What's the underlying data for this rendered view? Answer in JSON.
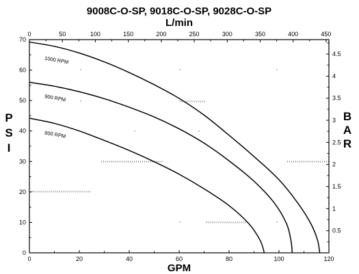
{
  "chart_data": {
    "type": "line",
    "title": "9008C-O-SP,  9018C-O-SP,  9028C-O-SP",
    "xlabel": "GPM",
    "ylabel": [
      "P",
      "S",
      "I"
    ],
    "x2label": "L/min",
    "y2label": [
      "B",
      "A",
      "R"
    ],
    "xlim": [
      0,
      120
    ],
    "ylim": [
      0,
      70
    ],
    "x_ticks": [
      "0",
      "20",
      "40",
      "60",
      "80",
      "100",
      "120"
    ],
    "y_ticks": [
      "0",
      "10",
      "20",
      "30",
      "40",
      "50",
      "60",
      "70"
    ],
    "x2lim": [
      0,
      454.25
    ],
    "x2_ticks": [
      "0",
      "50",
      "100",
      "150",
      "200",
      "250",
      "300",
      "350",
      "400",
      "450"
    ],
    "y2lim": [
      0,
      4.826
    ],
    "y2_ticks": [
      "0.5",
      "1",
      "1.5",
      "2",
      "2.5",
      "3",
      "3.5",
      "4",
      "4.5"
    ],
    "grid": false,
    "series": [
      {
        "name": "1000 RPM",
        "points": [
          [
            0,
            69.2
          ],
          [
            10,
            67.8
          ],
          [
            20,
            65.6
          ],
          [
            30,
            62.7
          ],
          [
            40,
            59.2
          ],
          [
            50,
            55.2
          ],
          [
            60,
            50.7
          ],
          [
            70,
            45.2
          ],
          [
            80,
            38.6
          ],
          [
            90,
            31.6
          ],
          [
            100,
            24.0
          ],
          [
            108,
            15.8
          ],
          [
            113,
            9.2
          ],
          [
            115.5,
            4.0
          ],
          [
            116.3,
            0
          ]
        ]
      },
      {
        "name": "900 RPM",
        "points": [
          [
            0,
            56.0
          ],
          [
            10,
            54.7
          ],
          [
            20,
            52.9
          ],
          [
            30,
            50.6
          ],
          [
            40,
            47.8
          ],
          [
            50,
            44.6
          ],
          [
            60,
            40.7
          ],
          [
            70,
            36.0
          ],
          [
            80,
            30.2
          ],
          [
            90,
            23.5
          ],
          [
            98,
            16.5
          ],
          [
            103,
            9.6
          ],
          [
            104.8,
            4.0
          ],
          [
            105.3,
            0
          ]
        ]
      },
      {
        "name": "800 RPM",
        "points": [
          [
            0,
            44.2
          ],
          [
            10,
            42.5
          ],
          [
            20,
            40.0
          ],
          [
            30,
            36.9
          ],
          [
            40,
            33.6
          ],
          [
            50,
            29.9
          ],
          [
            60,
            25.8
          ],
          [
            70,
            21.0
          ],
          [
            80,
            15.5
          ],
          [
            88,
            9.5
          ],
          [
            92.5,
            4.0
          ],
          [
            94.1,
            0
          ]
        ]
      }
    ]
  }
}
